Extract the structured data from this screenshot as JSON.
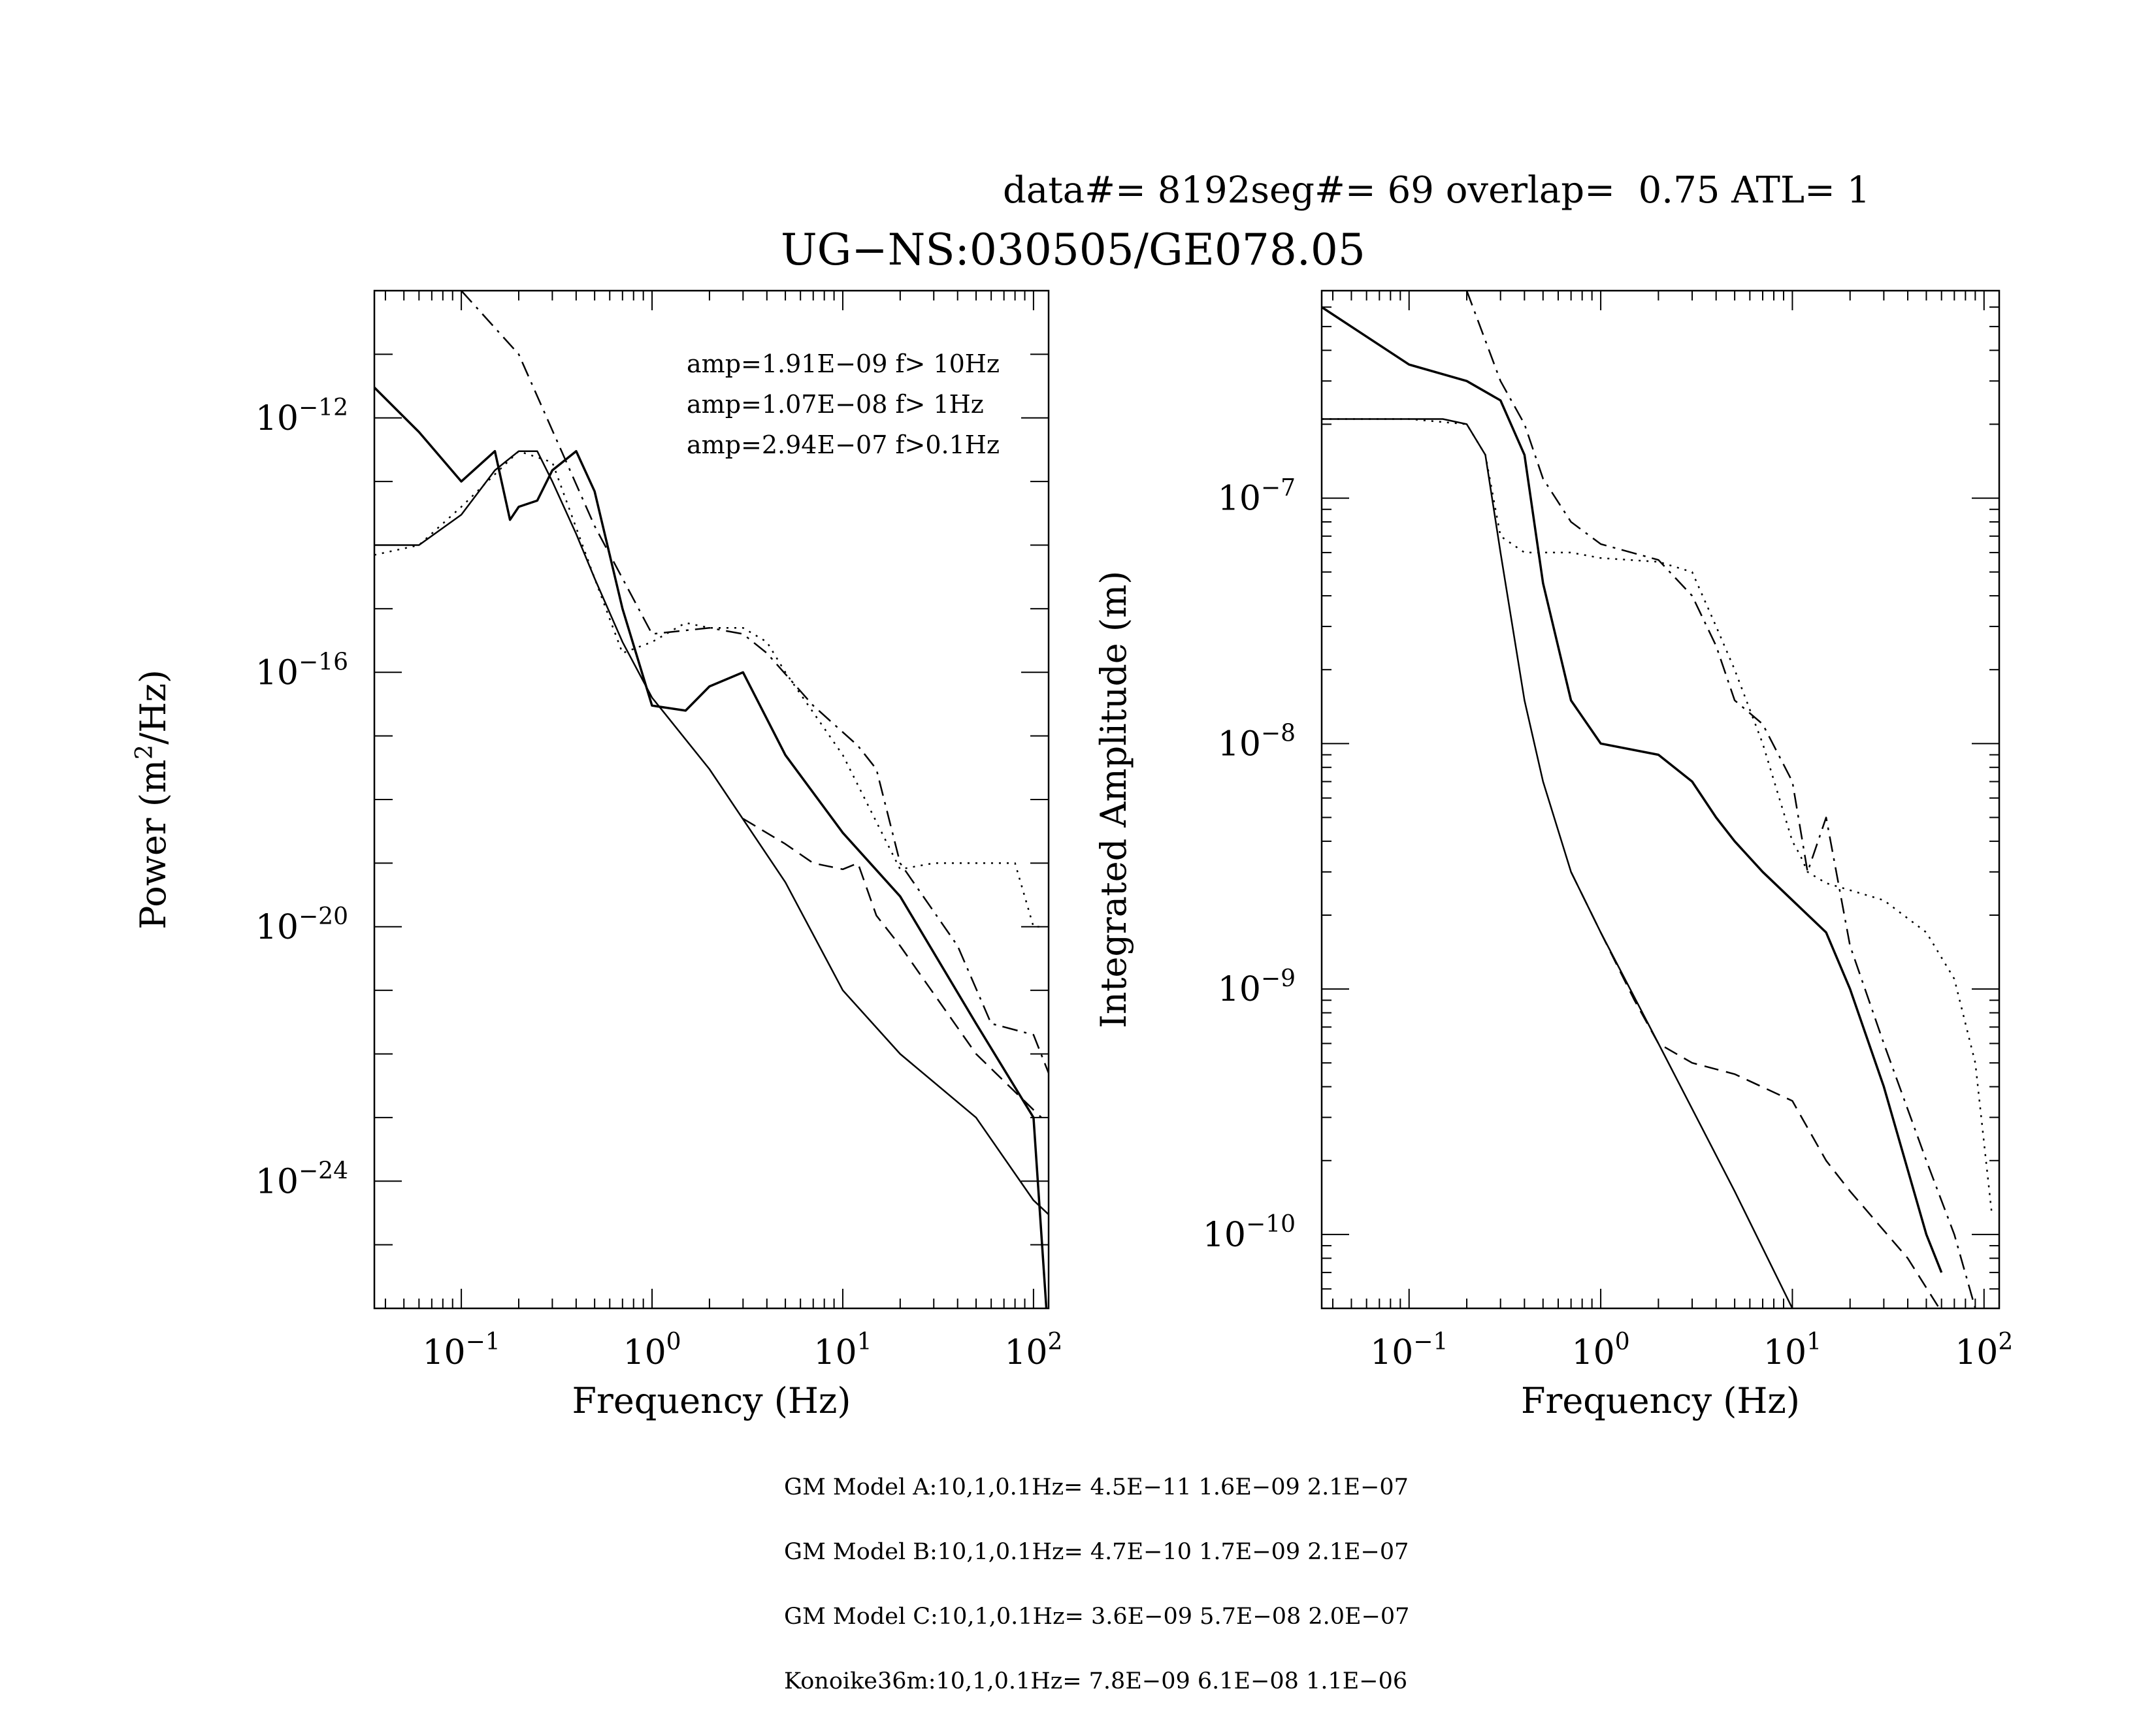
{
  "header": {
    "run_info": "data#= 8192seg#= 69 overlap=  0.75 ATL= 1",
    "title": "UG−NS:030505/GE078.05"
  },
  "chart_data": [
    {
      "type": "line",
      "scale": "log-log",
      "xlabel": "Frequency (Hz)",
      "ylabel_parts": [
        "Power (m",
        "2",
        "/Hz)"
      ],
      "xlim": [
        0.035,
        120
      ],
      "ylim": [
        1e-26,
        1e-10
      ],
      "x_ticks": [
        {
          "base": "10",
          "exp": "−1",
          "v": 0.1
        },
        {
          "base": "10",
          "exp": "0",
          "v": 1
        },
        {
          "base": "10",
          "exp": "1",
          "v": 10
        },
        {
          "base": "10",
          "exp": "2",
          "v": 100
        }
      ],
      "y_ticks": [
        {
          "base": "10",
          "exp": "−12",
          "v": 1e-12
        },
        {
          "base": "10",
          "exp": "−16",
          "v": 1e-16
        },
        {
          "base": "10",
          "exp": "−20",
          "v": 1e-20
        },
        {
          "base": "10",
          "exp": "−24",
          "v": 1e-24
        }
      ],
      "annotations": [
        "amp=1.91E−09 f> 10Hz",
        "amp=1.07E−08 f>  1Hz",
        "amp=2.94E−07 f>0.1Hz"
      ],
      "series": [
        {
          "style": "solid",
          "x": [
            0.035,
            0.06,
            0.1,
            0.15,
            0.18,
            0.2,
            0.25,
            0.3,
            0.4,
            0.5,
            0.7,
            1.0,
            1.5,
            2,
            3,
            5,
            10,
            20,
            50,
            100,
            120
          ],
          "y": [
            3e-12,
            6e-13,
            1e-13,
            3e-13,
            2.5e-14,
            4e-14,
            5e-14,
            1.5e-13,
            3e-13,
            7e-14,
            1e-15,
            3e-17,
            2.5e-17,
            6e-17,
            1e-16,
            5e-18,
            3e-19,
            3e-20,
            3e-22,
            1e-23,
            3e-27
          ]
        },
        {
          "style": "solid",
          "x": [
            0.035,
            0.06,
            0.1,
            0.15,
            0.2,
            0.25,
            0.3,
            0.4,
            0.5,
            0.7,
            1,
            2,
            5,
            10,
            20,
            50,
            100,
            120
          ],
          "y": [
            1e-14,
            1e-14,
            3e-14,
            1.5e-13,
            3e-13,
            3e-13,
            1e-13,
            1.5e-14,
            3e-15,
            3e-16,
            4e-17,
            3e-18,
            5e-20,
            1e-21,
            1e-22,
            1e-23,
            5e-25,
            3e-25
          ]
        },
        {
          "style": "dashed",
          "x": [
            3,
            5,
            7,
            10,
            12,
            15,
            20,
            50,
            110
          ],
          "y": [
            5e-19,
            2e-19,
            1e-19,
            8e-20,
            1e-19,
            1.5e-20,
            5e-21,
            1e-22,
            1e-23
          ]
        },
        {
          "style": "dotted",
          "x": [
            0.035,
            0.06,
            0.1,
            0.2,
            0.3,
            0.5,
            0.7,
            1,
            1.5,
            2,
            3,
            4,
            5,
            10,
            20,
            30,
            60,
            80,
            100,
            110
          ],
          "y": [
            7e-15,
            1e-14,
            4e-14,
            3e-13,
            2e-13,
            3e-15,
            2e-16,
            3e-16,
            6e-16,
            5e-16,
            5e-16,
            3e-16,
            1e-16,
            5e-18,
            8e-20,
            1e-19,
            1e-19,
            1e-19,
            1e-20,
            1e-20
          ]
        },
        {
          "style": "dashdot",
          "x": [
            0.1,
            0.2,
            0.5,
            1,
            2,
            3,
            4,
            7,
            12,
            15,
            20,
            40,
            60,
            100,
            120
          ],
          "y": [
            1e-10,
            1e-11,
            2e-14,
            4e-16,
            5e-16,
            4e-16,
            2e-16,
            3e-17,
            7e-18,
            3e-18,
            1e-19,
            5e-21,
            3e-22,
            2e-22,
            5e-23
          ]
        }
      ]
    },
    {
      "type": "line",
      "scale": "log-log",
      "xlabel": "Frequency (Hz)",
      "ylabel": "Integrated Amplitude (m)",
      "xlim": [
        0.035,
        120
      ],
      "ylim": [
        5e-11,
        7e-07
      ],
      "x_ticks": [
        {
          "base": "10",
          "exp": "−1",
          "v": 0.1
        },
        {
          "base": "10",
          "exp": "0",
          "v": 1
        },
        {
          "base": "10",
          "exp": "1",
          "v": 10
        },
        {
          "base": "10",
          "exp": "2",
          "v": 100
        }
      ],
      "y_ticks": [
        {
          "base": "10",
          "exp": "−7",
          "v": 1e-07
        },
        {
          "base": "10",
          "exp": "−8",
          "v": 1e-08
        },
        {
          "base": "10",
          "exp": "−9",
          "v": 1e-09
        },
        {
          "base": "10",
          "exp": "−10",
          "v": 1e-10
        }
      ],
      "series": [
        {
          "style": "solid",
          "x": [
            0.035,
            0.1,
            0.2,
            0.3,
            0.4,
            0.5,
            0.7,
            1,
            2,
            3,
            4,
            5,
            7,
            10,
            15,
            20,
            30,
            50,
            60
          ],
          "y": [
            6e-07,
            3.5e-07,
            3e-07,
            2.5e-07,
            1.5e-07,
            4.5e-08,
            1.5e-08,
            1e-08,
            9e-09,
            7e-09,
            5e-09,
            4e-09,
            3e-09,
            2.3e-09,
            1.7e-09,
            1e-09,
            4e-10,
            1e-10,
            7e-11
          ]
        },
        {
          "style": "solid",
          "x": [
            0.035,
            0.1,
            0.15,
            0.2,
            0.25,
            0.3,
            0.4,
            0.5,
            0.7,
            1,
            2,
            5,
            10
          ],
          "y": [
            2.1e-07,
            2.1e-07,
            2.1e-07,
            2e-07,
            1.5e-07,
            6e-08,
            1.5e-08,
            7e-09,
            3e-09,
            1.7e-09,
            6e-10,
            1.5e-10,
            5e-11
          ]
        },
        {
          "style": "dashed",
          "x": [
            0.7,
            1,
            1.5,
            2,
            3,
            5,
            10,
            15,
            20,
            40,
            70
          ],
          "y": [
            3e-09,
            1.7e-09,
            9e-10,
            6e-10,
            5e-10,
            4.5e-10,
            3.5e-10,
            2e-10,
            1.5e-10,
            8e-11,
            4e-11
          ]
        },
        {
          "style": "dotted",
          "x": [
            0.035,
            0.1,
            0.2,
            0.25,
            0.3,
            0.4,
            0.7,
            1,
            2,
            3,
            4,
            5,
            7,
            10,
            11,
            12,
            15,
            30,
            50,
            70,
            90,
            110
          ],
          "y": [
            2.1e-07,
            2.1e-07,
            2e-07,
            1.5e-07,
            7e-08,
            6e-08,
            6e-08,
            5.7e-08,
            5.5e-08,
            5e-08,
            3e-08,
            2e-08,
            1e-08,
            4e-09,
            3.5e-09,
            3e-09,
            2.7e-09,
            2.3e-09,
            1.7e-09,
            1.1e-09,
            5e-10,
            1.2e-10
          ]
        },
        {
          "style": "dashdot",
          "x": [
            0.2,
            0.3,
            0.4,
            0.5,
            0.7,
            1,
            2,
            3,
            4,
            5,
            7,
            10,
            12,
            15,
            20,
            30,
            50,
            70,
            90,
            110
          ],
          "y": [
            7e-07,
            3e-07,
            2e-07,
            1.2e-07,
            8e-08,
            6.5e-08,
            5.6e-08,
            4e-08,
            2.5e-08,
            1.5e-08,
            1.2e-08,
            7e-09,
            3e-09,
            5e-09,
            1.5e-09,
            6e-10,
            2e-10,
            1e-10,
            5e-11,
            3e-11
          ]
        }
      ]
    }
  ],
  "footer": [
    "GM Model A:10,1,0.1Hz= 4.5E−11 1.6E−09 2.1E−07",
    "GM Model B:10,1,0.1Hz= 4.7E−10 1.7E−09 2.1E−07",
    "GM Model C:10,1,0.1Hz= 3.6E−09 5.7E−08 2.0E−07",
    "Konoike36m:10,1,0.1Hz= 7.8E−09 6.1E−08 1.1E−06"
  ]
}
